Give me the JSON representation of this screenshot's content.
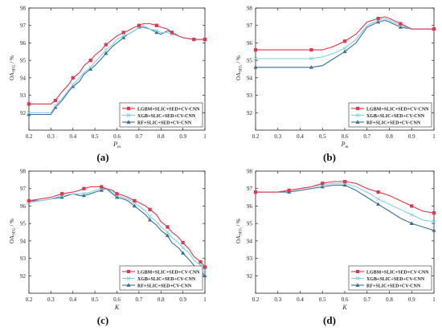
{
  "chart_data": [
    {
      "type": "line",
      "panel_label": "(a)",
      "ylabel": "OA_SEG / %",
      "xlabel": "P_m",
      "xlim": [
        0.2,
        1.0
      ],
      "ylim": [
        91,
        98
      ],
      "xticks": [
        "0.2",
        "0.3",
        "0.4",
        "0.5",
        "0.6",
        "0.7",
        "0.8",
        "0.9",
        "1"
      ],
      "yticks": [
        "92",
        "93",
        "94",
        "95",
        "96",
        "97",
        "98"
      ],
      "grid": false,
      "legend_position": "bottom-right",
      "series": [
        {
          "name": "LGBM+SLIC+SED+CV-CNN",
          "color": "#e8324a",
          "marker": "square",
          "x": [
            0.2,
            0.25,
            0.3,
            0.32,
            0.35,
            0.38,
            0.4,
            0.43,
            0.45,
            0.48,
            0.5,
            0.53,
            0.55,
            0.58,
            0.6,
            0.63,
            0.65,
            0.68,
            0.7,
            0.72,
            0.75,
            0.78,
            0.8,
            0.83,
            0.85,
            0.88,
            0.9,
            0.95,
            1.0
          ],
          "y": [
            92.5,
            92.5,
            92.5,
            92.7,
            93.2,
            93.6,
            94.0,
            94.3,
            94.7,
            95.0,
            95.3,
            95.6,
            95.9,
            96.2,
            96.4,
            96.6,
            96.7,
            96.9,
            97.0,
            97.1,
            97.1,
            97.0,
            96.9,
            96.8,
            96.6,
            96.4,
            96.3,
            96.2,
            96.2
          ]
        },
        {
          "name": "XGB+SLIC+SED+CV-CNN",
          "color": "#7fd3e3",
          "marker": "x",
          "x": [
            0.2,
            0.25,
            0.3,
            0.32,
            0.35,
            0.38,
            0.4,
            0.43,
            0.45,
            0.48,
            0.5,
            0.53,
            0.55,
            0.58,
            0.6,
            0.63,
            0.65,
            0.68,
            0.7,
            0.72,
            0.75,
            0.78,
            0.8,
            0.83,
            0.85,
            0.88,
            0.9,
            0.95,
            1.0
          ],
          "y": [
            92.0,
            92.0,
            92.0,
            92.4,
            92.8,
            93.3,
            93.6,
            94.0,
            94.3,
            94.6,
            94.9,
            95.3,
            95.6,
            95.9,
            96.2,
            96.4,
            96.5,
            96.7,
            96.9,
            97.0,
            96.8,
            96.7,
            96.6,
            96.6,
            96.5,
            96.4,
            96.3,
            96.2,
            96.2
          ]
        },
        {
          "name": "RF+SLIC+SED+CV-CNN",
          "color": "#3b6f96",
          "marker": "triangle",
          "x": [
            0.2,
            0.25,
            0.3,
            0.32,
            0.35,
            0.38,
            0.4,
            0.43,
            0.45,
            0.48,
            0.5,
            0.53,
            0.55,
            0.58,
            0.6,
            0.63,
            0.65,
            0.68,
            0.7,
            0.72,
            0.75,
            0.78,
            0.8,
            0.83,
            0.85,
            0.88,
            0.9,
            0.95,
            1.0
          ],
          "y": [
            91.9,
            91.9,
            91.9,
            92.3,
            92.7,
            93.2,
            93.5,
            93.8,
            94.2,
            94.5,
            94.7,
            95.1,
            95.4,
            95.8,
            96.0,
            96.3,
            96.5,
            96.7,
            96.9,
            96.9,
            96.8,
            96.6,
            96.5,
            96.7,
            96.6,
            96.4,
            96.3,
            96.2,
            96.2
          ]
        }
      ]
    },
    {
      "type": "line",
      "panel_label": "(b)",
      "ylabel": "OA_SEG / %",
      "xlabel": "P_m",
      "xlim": [
        0.2,
        1.0
      ],
      "ylim": [
        91,
        98
      ],
      "xticks": [
        "0.2",
        "0.3",
        "0.4",
        "0.5",
        "0.6",
        "0.7",
        "0.8",
        "0.9",
        "1"
      ],
      "yticks": [
        "92",
        "93",
        "94",
        "95",
        "96",
        "97",
        "98"
      ],
      "grid": false,
      "legend_position": "bottom-right",
      "series": [
        {
          "name": "LGBM+SLIC+SED+CV-CNN",
          "color": "#e8324a",
          "marker": "square",
          "x": [
            0.2,
            0.3,
            0.4,
            0.45,
            0.5,
            0.55,
            0.6,
            0.65,
            0.7,
            0.75,
            0.78,
            0.8,
            0.85,
            0.9,
            0.95,
            1.0
          ],
          "y": [
            95.6,
            95.6,
            95.6,
            95.6,
            95.6,
            95.8,
            96.1,
            96.5,
            97.2,
            97.4,
            97.5,
            97.4,
            97.1,
            96.8,
            96.8,
            96.8
          ]
        },
        {
          "name": "XGB+SLIC+SED+CV-CNN",
          "color": "#7fd3e3",
          "marker": "x",
          "x": [
            0.2,
            0.3,
            0.4,
            0.45,
            0.5,
            0.55,
            0.6,
            0.65,
            0.7,
            0.75,
            0.78,
            0.8,
            0.85,
            0.9,
            0.95,
            1.0
          ],
          "y": [
            95.1,
            95.1,
            95.1,
            95.1,
            95.2,
            95.4,
            95.7,
            96.2,
            97.0,
            97.3,
            97.4,
            97.3,
            97.0,
            96.8,
            96.8,
            96.8
          ]
        },
        {
          "name": "RF+SLIC+SED+CV-CNN",
          "color": "#3b6f96",
          "marker": "triangle",
          "x": [
            0.2,
            0.3,
            0.4,
            0.45,
            0.5,
            0.55,
            0.6,
            0.65,
            0.7,
            0.75,
            0.78,
            0.8,
            0.85,
            0.9,
            0.95,
            1.0
          ],
          "y": [
            94.6,
            94.6,
            94.6,
            94.6,
            94.7,
            95.1,
            95.5,
            96.0,
            96.9,
            97.2,
            97.3,
            97.2,
            96.9,
            96.8,
            96.8,
            96.8
          ]
        }
      ]
    },
    {
      "type": "line",
      "panel_label": "(c)",
      "ylabel": "OA_SEG / %",
      "xlabel": "K",
      "xlim": [
        0.2,
        1.0
      ],
      "ylim": [
        91,
        98
      ],
      "xticks": [
        "0.2",
        "0.3",
        "0.4",
        "0.5",
        "0.6",
        "0.7",
        "0.8",
        "0.9",
        "1"
      ],
      "yticks": [
        "92",
        "93",
        "94",
        "95",
        "96",
        "97",
        "98"
      ],
      "grid": false,
      "legend_position": "bottom-right",
      "series": [
        {
          "name": "LGBM+SLIC+SED+CV-CNN",
          "color": "#e8324a",
          "marker": "square",
          "x": [
            0.2,
            0.25,
            0.3,
            0.35,
            0.4,
            0.43,
            0.45,
            0.48,
            0.5,
            0.53,
            0.55,
            0.58,
            0.6,
            0.63,
            0.65,
            0.68,
            0.7,
            0.73,
            0.75,
            0.78,
            0.8,
            0.83,
            0.85,
            0.88,
            0.9,
            0.93,
            0.95,
            0.98,
            1.0
          ],
          "y": [
            96.3,
            96.4,
            96.5,
            96.7,
            96.8,
            96.9,
            97.0,
            97.1,
            97.1,
            97.1,
            97.0,
            96.9,
            96.7,
            96.6,
            96.5,
            96.3,
            96.2,
            96.0,
            95.8,
            95.5,
            95.1,
            94.8,
            94.5,
            94.2,
            93.9,
            93.5,
            93.1,
            92.8,
            92.5
          ]
        },
        {
          "name": "XGB+SLIC+SED+CV-CNN",
          "color": "#7fd3e3",
          "marker": "x",
          "x": [
            0.2,
            0.25,
            0.3,
            0.35,
            0.4,
            0.43,
            0.45,
            0.48,
            0.5,
            0.53,
            0.55,
            0.58,
            0.6,
            0.63,
            0.65,
            0.68,
            0.7,
            0.73,
            0.75,
            0.78,
            0.8,
            0.83,
            0.85,
            0.88,
            0.9,
            0.93,
            0.95,
            0.98,
            1.0
          ],
          "y": [
            96.2,
            96.3,
            96.4,
            96.6,
            96.7,
            96.7,
            96.7,
            96.8,
            96.9,
            97.0,
            97.0,
            96.8,
            96.6,
            96.5,
            96.4,
            96.2,
            96.0,
            95.7,
            95.4,
            95.1,
            94.8,
            94.5,
            94.2,
            93.9,
            93.6,
            93.3,
            92.9,
            92.6,
            92.3
          ]
        },
        {
          "name": "RF+SLIC+SED+CV-CNN",
          "color": "#3b6f96",
          "marker": "triangle",
          "x": [
            0.2,
            0.25,
            0.3,
            0.35,
            0.4,
            0.43,
            0.45,
            0.48,
            0.5,
            0.53,
            0.55,
            0.58,
            0.6,
            0.63,
            0.65,
            0.68,
            0.7,
            0.73,
            0.75,
            0.78,
            0.8,
            0.83,
            0.85,
            0.88,
            0.9,
            0.93,
            0.95,
            0.98,
            1.0
          ],
          "y": [
            96.3,
            96.3,
            96.4,
            96.5,
            96.7,
            96.6,
            96.6,
            96.7,
            96.8,
            96.9,
            97.0,
            96.7,
            96.5,
            96.4,
            96.3,
            96.0,
            95.8,
            95.5,
            95.2,
            94.9,
            94.6,
            94.3,
            93.9,
            93.6,
            93.3,
            92.9,
            92.6,
            92.3,
            92.0
          ]
        }
      ]
    },
    {
      "type": "line",
      "panel_label": "(d)",
      "ylabel": "OA_SEG / %",
      "xlabel": "K",
      "xlim": [
        0.2,
        1.0
      ],
      "ylim": [
        91,
        98
      ],
      "xticks": [
        "0.2",
        "0.3",
        "0.4",
        "0.5",
        "0.6",
        "0.7",
        "0.8",
        "0.9",
        "1"
      ],
      "yticks": [
        "92",
        "93",
        "94",
        "95",
        "96",
        "97",
        "98"
      ],
      "grid": false,
      "legend_position": "bottom-right",
      "series": [
        {
          "name": "LGBM+SLIC+SED+CV-CNN",
          "color": "#e8324a",
          "marker": "square",
          "x": [
            0.2,
            0.25,
            0.3,
            0.35,
            0.4,
            0.45,
            0.5,
            0.55,
            0.58,
            0.6,
            0.65,
            0.7,
            0.75,
            0.8,
            0.85,
            0.9,
            0.95,
            1.0
          ],
          "y": [
            96.8,
            96.8,
            96.8,
            96.9,
            97.0,
            97.1,
            97.3,
            97.4,
            97.4,
            97.4,
            97.3,
            97.0,
            96.8,
            96.6,
            96.3,
            96.0,
            95.7,
            95.6
          ]
        },
        {
          "name": "XGB+SLIC+SED+CV-CNN",
          "color": "#7fd3e3",
          "marker": "x",
          "x": [
            0.2,
            0.25,
            0.3,
            0.35,
            0.4,
            0.45,
            0.5,
            0.55,
            0.58,
            0.6,
            0.65,
            0.7,
            0.75,
            0.8,
            0.85,
            0.9,
            0.95,
            1.0
          ],
          "y": [
            96.8,
            96.8,
            96.8,
            96.9,
            97.0,
            97.1,
            97.2,
            97.3,
            97.3,
            97.3,
            97.1,
            96.8,
            96.4,
            96.1,
            95.8,
            95.5,
            95.2,
            95.1
          ]
        },
        {
          "name": "RF+SLIC+SED+CV-CNN",
          "color": "#3b6f96",
          "marker": "triangle",
          "x": [
            0.2,
            0.25,
            0.3,
            0.35,
            0.4,
            0.45,
            0.5,
            0.55,
            0.58,
            0.6,
            0.65,
            0.7,
            0.75,
            0.8,
            0.85,
            0.9,
            0.95,
            1.0
          ],
          "y": [
            96.8,
            96.8,
            96.8,
            96.8,
            96.9,
            97.0,
            97.1,
            97.2,
            97.2,
            97.2,
            96.9,
            96.5,
            96.1,
            95.7,
            95.3,
            95.0,
            94.8,
            94.6
          ]
        }
      ]
    }
  ]
}
